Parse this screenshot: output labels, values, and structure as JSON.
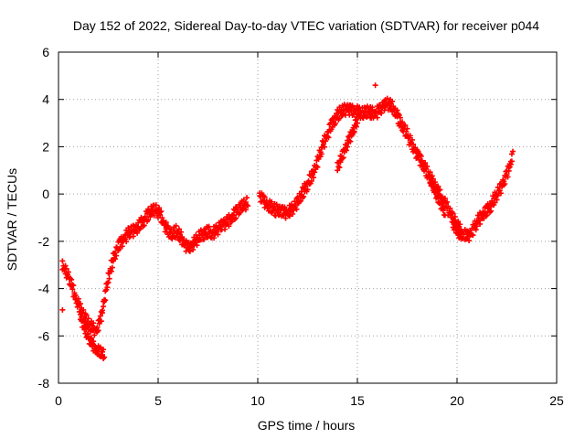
{
  "chart_data": {
    "type": "scatter",
    "title": "Day 152 of 2022, Sidereal Day-to-day VTEC variation (SDTVAR) for receiver p044",
    "xlabel": "GPS time / hours",
    "ylabel": "SDTVAR / TECUs",
    "xlim": [
      0,
      25
    ],
    "ylim": [
      -8,
      6
    ],
    "xticks": [
      "0",
      "5",
      "10",
      "15",
      "20",
      "25"
    ],
    "yticks": [
      "-8",
      "-6",
      "-4",
      "-2",
      "0",
      "2",
      "4",
      "6"
    ],
    "grid": true,
    "marker": "+",
    "color": "#ff0000",
    "series": [
      {
        "name": "p044",
        "x": [
          0.2,
          0.3,
          0.5,
          0.7,
          0.9,
          1.1,
          1.3,
          1.5,
          1.7,
          1.9,
          2.1,
          2.3,
          2.5,
          2.7,
          2.9,
          3.1,
          3.3,
          3.5,
          3.7,
          3.9,
          4.1,
          4.3,
          4.5,
          4.7,
          4.9,
          5.1,
          5.3,
          5.5,
          5.7,
          5.9,
          6.1,
          6.3,
          6.5,
          6.7,
          6.9,
          7.1,
          7.3,
          7.5,
          7.7,
          7.9,
          8.1,
          8.3,
          8.5,
          8.7,
          8.9,
          9.1,
          9.3,
          9.5,
          10.1,
          10.3,
          10.5,
          10.7,
          10.9,
          11.1,
          11.3,
          11.5,
          11.7,
          11.9,
          12.1,
          12.3,
          12.5,
          12.7,
          12.9,
          13.1,
          13.3,
          13.5,
          13.7,
          13.9,
          14.1,
          14.3,
          14.5,
          14.7,
          14.9,
          15.1,
          15.3,
          15.5,
          15.7,
          15.9,
          16.1,
          16.3,
          16.5,
          16.7,
          16.9,
          17.1,
          17.3,
          17.5,
          17.7,
          17.9,
          18.1,
          18.3,
          18.5,
          18.7,
          18.9,
          19.1,
          19.3,
          19.5,
          19.7,
          19.9,
          20.1,
          20.3,
          20.5,
          20.7,
          20.9,
          21.1,
          21.3,
          21.5,
          21.7,
          21.9,
          22.1,
          22.3,
          22.5,
          22.7,
          22.8
        ],
        "y": [
          -3.2,
          -3.3,
          -3.6,
          -4.1,
          -4.6,
          -5.0,
          -5.3,
          -5.6,
          -5.8,
          -5.9,
          -5.5,
          -4.6,
          -3.7,
          -3.0,
          -2.5,
          -2.2,
          -2.0,
          -1.8,
          -1.7,
          -1.6,
          -1.4,
          -1.2,
          -1.0,
          -0.8,
          -0.8,
          -1.0,
          -1.4,
          -1.7,
          -1.8,
          -1.7,
          -1.9,
          -2.2,
          -2.4,
          -2.3,
          -2.1,
          -1.9,
          -1.8,
          -1.7,
          -1.8,
          -1.7,
          -1.5,
          -1.4,
          -1.3,
          -1.1,
          -0.9,
          -0.7,
          -0.6,
          -0.5,
          -0.2,
          -0.4,
          -0.6,
          -0.7,
          -0.8,
          -0.8,
          -0.9,
          -0.9,
          -0.8,
          -0.6,
          -0.3,
          0.0,
          0.3,
          0.6,
          1.0,
          1.5,
          2.0,
          2.4,
          2.8,
          3.1,
          3.3,
          3.4,
          3.5,
          3.4,
          3.4,
          3.3,
          3.3,
          3.4,
          3.3,
          3.3,
          3.4,
          3.6,
          3.7,
          3.6,
          3.4,
          3.0,
          2.7,
          2.4,
          2.0,
          1.7,
          1.4,
          1.1,
          0.8,
          0.5,
          0.2,
          -0.1,
          -0.4,
          -0.7,
          -1.0,
          -1.3,
          -1.6,
          -1.8,
          -1.9,
          -1.8,
          -1.5,
          -1.2,
          -1.0,
          -0.8,
          -0.6,
          -0.3,
          0.0,
          0.3,
          0.7,
          1.2,
          1.8
        ],
        "lower_branches": [
          {
            "x": [
              1.1,
              1.3,
              1.5,
              1.7,
              1.9,
              2.1,
              2.3
            ],
            "y": [
              -5.3,
              -5.8,
              -6.2,
              -6.5,
              -6.7,
              -6.8,
              -6.9
            ]
          },
          {
            "x": [
              14.0,
              14.2,
              14.4,
              14.6,
              14.8,
              15.0
            ],
            "y": [
              1.0,
              1.4,
              1.8,
              2.2,
              2.6,
              3.0
            ]
          },
          {
            "x": [
              18.2,
              18.6,
              19.0,
              19.4,
              19.8,
              20.2
            ],
            "y": [
              1.6,
              0.6,
              -0.2,
              -0.9,
              -1.4,
              -1.9
            ]
          }
        ],
        "outliers": [
          {
            "x": 0.2,
            "y": -4.9
          },
          {
            "x": 15.9,
            "y": 4.6
          }
        ]
      }
    ]
  }
}
